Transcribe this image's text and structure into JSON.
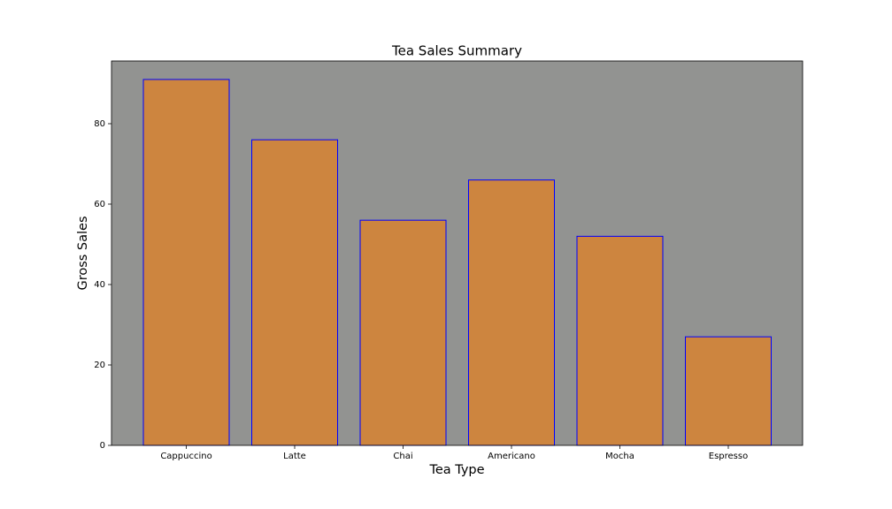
{
  "chart_data": {
    "type": "bar",
    "title": "Tea Sales Summary",
    "x_label": "Tea Type",
    "y_label": "Gross Sales",
    "categories": [
      "Cappuccino",
      "Latte",
      "Chai",
      "Americano",
      "Mocha",
      "Espresso"
    ],
    "values": [
      91,
      76,
      56,
      66,
      52,
      27
    ],
    "color": "#cd853f",
    "edgecolor": "#0000ff",
    "background": "#929391",
    "ylim": [
      0,
      95.6
    ],
    "yticks": [
      0,
      20,
      40,
      60,
      80
    ],
    "grid": false
  }
}
